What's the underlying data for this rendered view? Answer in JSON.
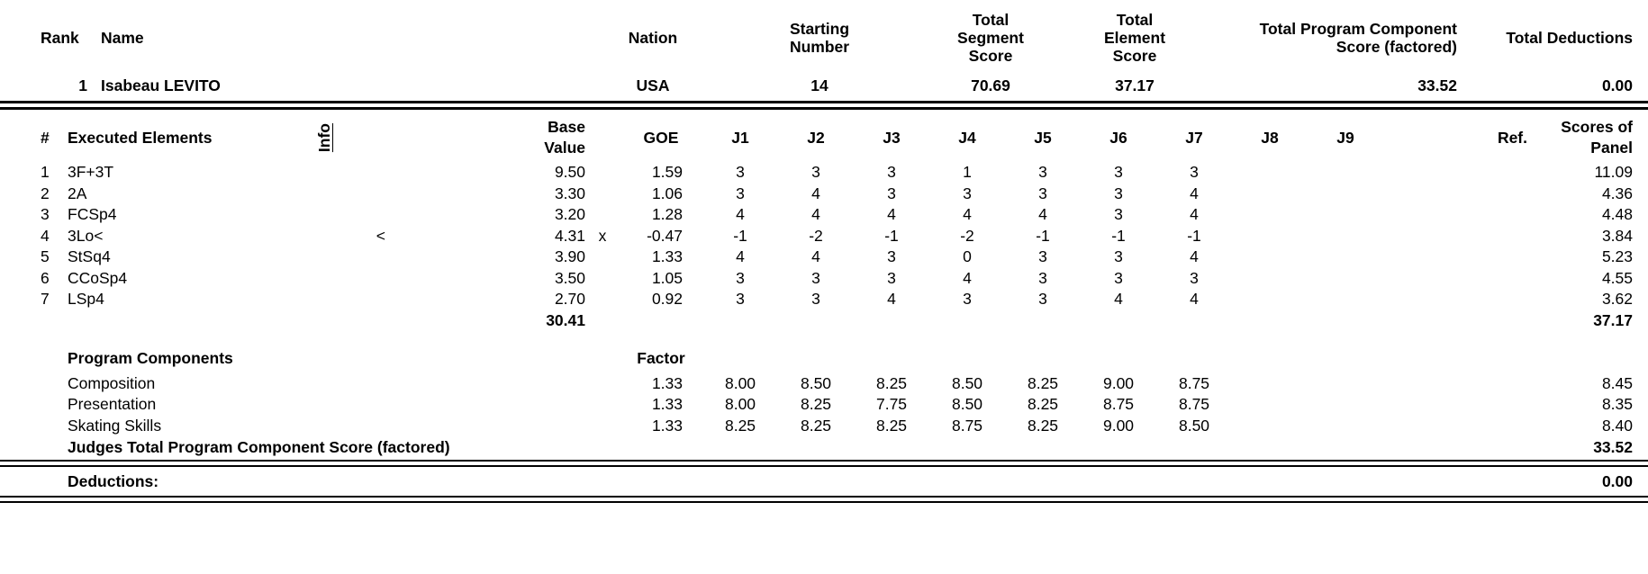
{
  "top": {
    "rank_label": "Rank",
    "name_label": "Name",
    "nation_label": "Nation",
    "starting_number_label": "Starting\nNumber",
    "total_segment_score_label": "Total\nSegment\nScore",
    "total_element_score_label": "Total\nElement\nScore",
    "total_program_component_label": "Total Program Component\nScore (factored)",
    "total_deductions_label": "Total Deductions"
  },
  "skater": {
    "rank": "1",
    "name": "Isabeau LEVITO",
    "nation": "USA",
    "starting_number": "14",
    "total_segment_score": "70.69",
    "total_element_score": "37.17",
    "total_program_component_score": "33.52",
    "total_deductions": "0.00"
  },
  "elements_table": {
    "headers": {
      "num": "#",
      "executed_elements": "Executed Elements",
      "info": "Info",
      "base_value": "Base\nValue",
      "goe": "GOE",
      "judges": [
        "J1",
        "J2",
        "J3",
        "J4",
        "J5",
        "J6",
        "J7",
        "J8",
        "J9"
      ],
      "ref": "Ref.",
      "scores_of_panel": "Scores of\nPanel"
    },
    "rows": [
      {
        "num": "1",
        "name": "3F+3T",
        "info": "",
        "base_value": "9.50",
        "x": "",
        "goe": "1.59",
        "judges": [
          "3",
          "3",
          "3",
          "1",
          "3",
          "3",
          "3",
          "",
          ""
        ],
        "ref": "",
        "panel": "11.09"
      },
      {
        "num": "2",
        "name": "2A",
        "info": "",
        "base_value": "3.30",
        "x": "",
        "goe": "1.06",
        "judges": [
          "3",
          "4",
          "3",
          "3",
          "3",
          "3",
          "4",
          "",
          ""
        ],
        "ref": "",
        "panel": "4.36"
      },
      {
        "num": "3",
        "name": "FCSp4",
        "info": "",
        "base_value": "3.20",
        "x": "",
        "goe": "1.28",
        "judges": [
          "4",
          "4",
          "4",
          "4",
          "4",
          "3",
          "4",
          "",
          ""
        ],
        "ref": "",
        "panel": "4.48"
      },
      {
        "num": "4",
        "name": "3Lo<",
        "info": "<",
        "base_value": "4.31",
        "x": "x",
        "goe": "-0.47",
        "judges": [
          "-1",
          "-2",
          "-1",
          "-2",
          "-1",
          "-1",
          "-1",
          "",
          ""
        ],
        "ref": "",
        "panel": "3.84"
      },
      {
        "num": "5",
        "name": "StSq4",
        "info": "",
        "base_value": "3.90",
        "x": "",
        "goe": "1.33",
        "judges": [
          "4",
          "4",
          "3",
          "0",
          "3",
          "3",
          "4",
          "",
          ""
        ],
        "ref": "",
        "panel": "5.23"
      },
      {
        "num": "6",
        "name": "CCoSp4",
        "info": "",
        "base_value": "3.50",
        "x": "",
        "goe": "1.05",
        "judges": [
          "3",
          "3",
          "3",
          "4",
          "3",
          "3",
          "3",
          "",
          ""
        ],
        "ref": "",
        "panel": "4.55"
      },
      {
        "num": "7",
        "name": "LSp4",
        "info": "",
        "base_value": "2.70",
        "x": "",
        "goe": "0.92",
        "judges": [
          "3",
          "3",
          "4",
          "3",
          "3",
          "4",
          "4",
          "",
          ""
        ],
        "ref": "",
        "panel": "3.62"
      }
    ],
    "totals": {
      "base_value": "30.41",
      "panel_score": "37.17"
    }
  },
  "components": {
    "title": "Program Components",
    "factor_label": "Factor",
    "rows": [
      {
        "name": "Composition",
        "factor": "1.33",
        "judges": [
          "8.00",
          "8.50",
          "8.25",
          "8.50",
          "8.25",
          "9.00",
          "8.75",
          "",
          ""
        ],
        "score": "8.45"
      },
      {
        "name": "Presentation",
        "factor": "1.33",
        "judges": [
          "8.00",
          "8.25",
          "7.75",
          "8.50",
          "8.25",
          "8.75",
          "8.75",
          "",
          ""
        ],
        "score": "8.35"
      },
      {
        "name": "Skating Skills",
        "factor": "1.33",
        "judges": [
          "8.25",
          "8.25",
          "8.25",
          "8.75",
          "8.25",
          "9.00",
          "8.50",
          "",
          ""
        ],
        "score": "8.40"
      }
    ],
    "total_label": "Judges Total Program Component Score (factored)",
    "total_value": "33.52"
  },
  "deductions": {
    "label": "Deductions:",
    "value": "0.00"
  }
}
